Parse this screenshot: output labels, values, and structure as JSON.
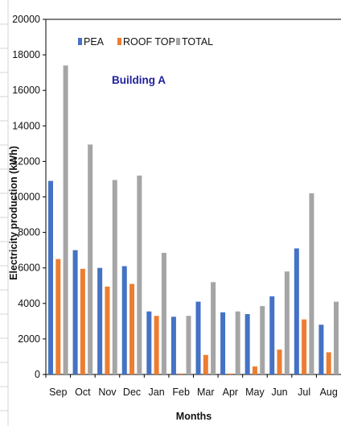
{
  "chart_data": {
    "type": "bar",
    "categories": [
      "Sep",
      "Oct",
      "Nov",
      "Dec",
      "Jan",
      "Feb",
      "Mar",
      "Apr",
      "May",
      "Jun",
      "Jul",
      "Aug"
    ],
    "series": [
      {
        "name": "PEA",
        "color": "#4472c4",
        "values": [
          10900,
          7000,
          6000,
          6100,
          3550,
          3250,
          4100,
          3500,
          3400,
          4400,
          7100,
          2800
        ]
      },
      {
        "name": "ROOF TOP",
        "color": "#ed7d31",
        "values": [
          6500,
          5950,
          4950,
          5100,
          3300,
          50,
          1100,
          50,
          450,
          1400,
          3100,
          1250
        ]
      },
      {
        "name": "TOTAL",
        "color": "#a5a5a5",
        "values": [
          17400,
          12950,
          10950,
          11200,
          6850,
          3300,
          5200,
          3550,
          3850,
          5800,
          10200,
          4100
        ]
      }
    ],
    "yticks": [
      0,
      2000,
      4000,
      6000,
      8000,
      10000,
      12000,
      14000,
      16000,
      18000,
      20000
    ],
    "ylim": [
      0,
      20000
    ],
    "xlabel": "Months",
    "ylabel": "Electricity production (kWh)",
    "annotation": "Building A",
    "annotation_color": "#1f1f9f",
    "legend_position": "top-left",
    "grid": false
  }
}
